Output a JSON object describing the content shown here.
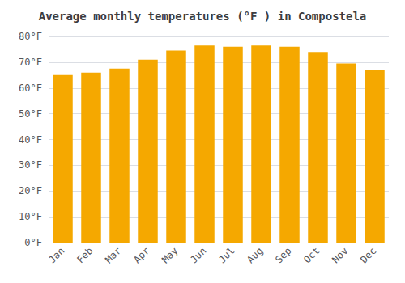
{
  "chart_data": {
    "type": "bar",
    "title": "Average monthly temperatures (°F ) in Compostela",
    "categories": [
      "Jan",
      "Feb",
      "Mar",
      "Apr",
      "May",
      "Jun",
      "Jul",
      "Aug",
      "Sep",
      "Oct",
      "Nov",
      "Dec"
    ],
    "values": [
      65.0,
      66.0,
      67.5,
      71.0,
      74.5,
      76.5,
      76.0,
      76.5,
      76.0,
      74.0,
      69.5,
      67.0
    ],
    "color": "#F5A800",
    "ylim": [
      0,
      80
    ],
    "yticks": [
      {
        "value": 0,
        "label": "0°F"
      },
      {
        "value": 10,
        "label": "10°F"
      },
      {
        "value": 20,
        "label": "20°F"
      },
      {
        "value": 30,
        "label": "30°F"
      },
      {
        "value": 40,
        "label": "40°F"
      },
      {
        "value": 50,
        "label": "50°F"
      },
      {
        "value": 60,
        "label": "60°F"
      },
      {
        "value": 70,
        "label": "70°F"
      },
      {
        "value": 80,
        "label": "80°F"
      }
    ],
    "grid": true
  }
}
